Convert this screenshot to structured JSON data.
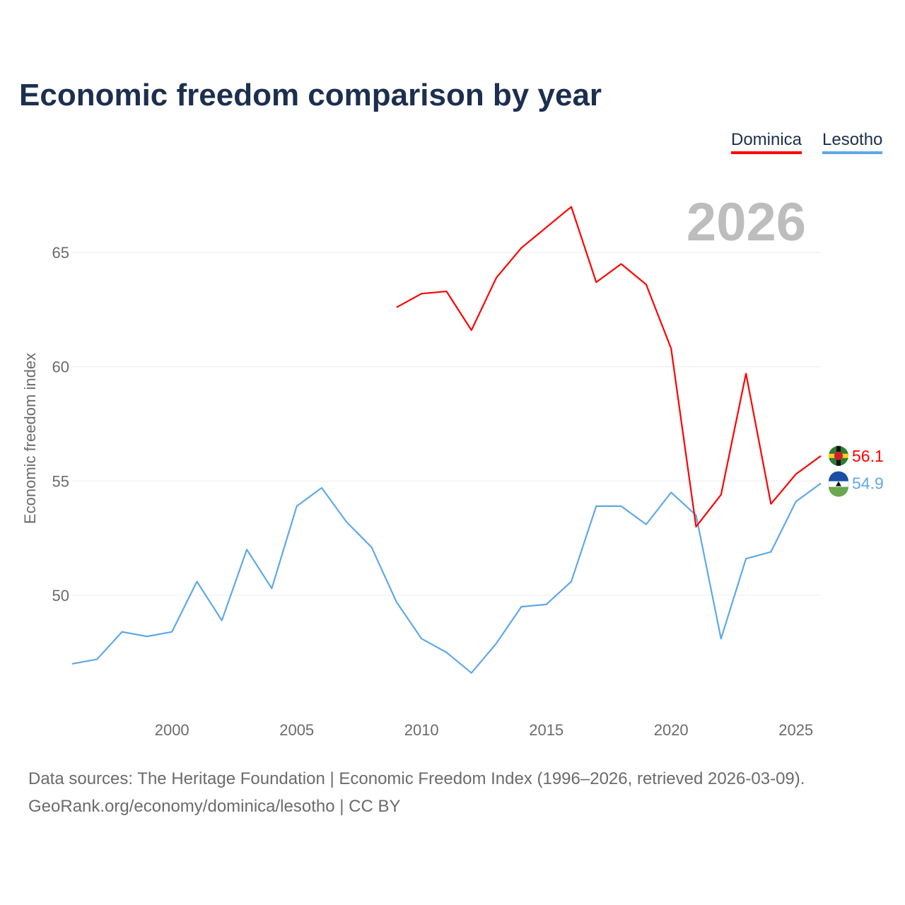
{
  "chart_data": {
    "type": "line",
    "title": "Economic freedom comparison by year",
    "ylabel": "Economic freedom index",
    "xlabel": "",
    "xlim": [
      1996,
      2026
    ],
    "ylim": [
      44.8,
      69.8
    ],
    "yticks": [
      50,
      55,
      60,
      65
    ],
    "xticks": [
      2000,
      2005,
      2010,
      2015,
      2020,
      2025
    ],
    "grid": true,
    "legend_position": "top-right",
    "year_label": "2026",
    "series": [
      {
        "name": "Dominica",
        "color": "#ff0000",
        "end_label": "56.1",
        "x": [
          2009,
          2010,
          2011,
          2012,
          2013,
          2014,
          2015,
          2016,
          2017,
          2018,
          2019,
          2020,
          2021,
          2022,
          2023,
          2024,
          2025,
          2026
        ],
        "values": [
          62.6,
          63.2,
          63.3,
          61.6,
          63.9,
          65.2,
          66.1,
          67.0,
          63.7,
          64.5,
          63.6,
          60.8,
          53.0,
          54.4,
          59.7,
          54.0,
          55.3,
          56.1
        ]
      },
      {
        "name": "Lesotho",
        "color": "#5fa8e8",
        "end_label": "54.9",
        "x": [
          1996,
          1997,
          1998,
          1999,
          2000,
          2001,
          2002,
          2003,
          2004,
          2005,
          2006,
          2007,
          2008,
          2009,
          2010,
          2011,
          2012,
          2013,
          2014,
          2015,
          2016,
          2017,
          2018,
          2019,
          2020,
          2021,
          2022,
          2023,
          2024,
          2025,
          2026
        ],
        "values": [
          47.0,
          47.2,
          48.4,
          48.2,
          48.4,
          50.6,
          48.9,
          52.0,
          50.3,
          53.9,
          54.7,
          53.2,
          52.1,
          49.7,
          48.1,
          47.5,
          46.6,
          47.9,
          49.5,
          49.6,
          50.6,
          53.9,
          53.9,
          53.1,
          54.5,
          53.5,
          48.1,
          51.6,
          51.9,
          54.1,
          54.9
        ]
      }
    ]
  },
  "footer": {
    "line1": "Data sources: The Heritage Foundation | Economic Freedom Index (1996–2026, retrieved 2026-03-09).",
    "line2": "GeoRank.org/economy/dominica/lesotho | CC BY"
  }
}
